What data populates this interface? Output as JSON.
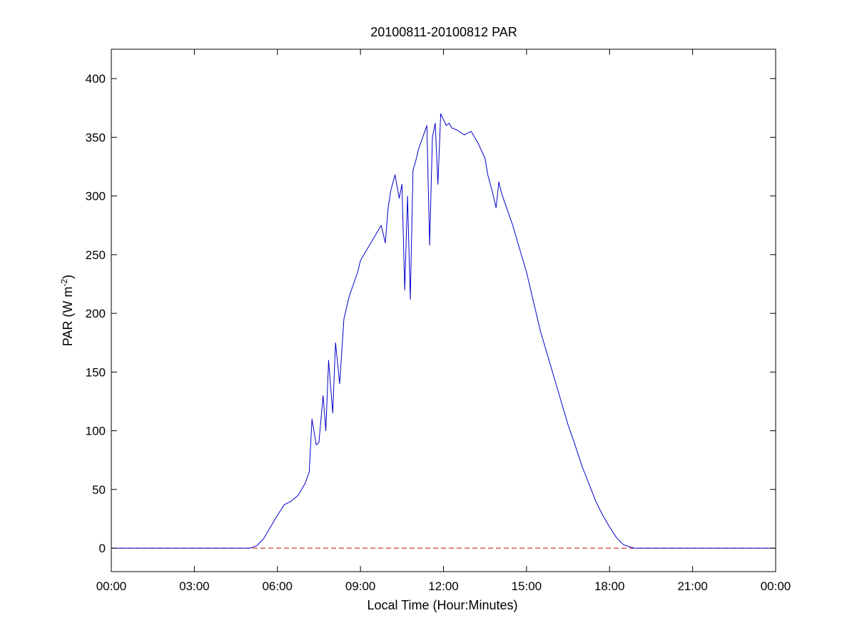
{
  "chart_data": {
    "type": "line",
    "title": "20100811-20100812 PAR",
    "xlabel": "Local Time (Hour:Minutes)",
    "ylabel": {
      "main": "PAR (W m",
      "sup": "-2",
      "close": ")"
    },
    "x_unit": "hours",
    "xlim": [
      0,
      24
    ],
    "ylim": [
      -20,
      425
    ],
    "x_ticks": [
      0,
      3,
      6,
      9,
      12,
      15,
      18,
      21,
      24
    ],
    "x_tick_labels": [
      "00:00",
      "03:00",
      "06:00",
      "09:00",
      "12:00",
      "15:00",
      "18:00",
      "21:00",
      "00:00"
    ],
    "y_ticks": [
      0,
      50,
      100,
      150,
      200,
      250,
      300,
      350,
      400
    ],
    "y_tick_labels": [
      "0",
      "50",
      "100",
      "150",
      "200",
      "250",
      "300",
      "350",
      "400"
    ],
    "grid": false,
    "legend": "none",
    "colors": {
      "series": "#0000cc",
      "reference": "#cc0000",
      "axes": "#000000"
    },
    "reference_line": {
      "y": 0,
      "style": "dashed"
    },
    "series": [
      {
        "x": [
          0,
          1,
          2,
          3,
          4,
          5,
          5.25,
          5.5,
          5.75,
          6.0,
          6.25,
          6.5,
          6.75,
          7.0,
          7.15,
          7.25,
          7.4,
          7.5,
          7.65,
          7.75,
          7.85,
          8.0,
          8.1,
          8.25,
          8.4,
          8.5,
          8.6,
          8.75,
          8.9,
          9.0,
          9.25,
          9.5,
          9.75,
          9.9,
          10.0,
          10.1,
          10.25,
          10.4,
          10.5,
          10.6,
          10.7,
          10.8,
          10.9,
          11.0,
          11.1,
          11.25,
          11.4,
          11.5,
          11.6,
          11.7,
          11.8,
          11.9,
          12.0,
          12.1,
          12.2,
          12.3,
          12.5,
          12.75,
          13.0,
          13.25,
          13.5,
          13.6,
          13.75,
          13.9,
          14.0,
          14.1,
          14.25,
          14.5,
          14.75,
          15.0,
          15.25,
          15.5,
          15.75,
          16.0,
          16.25,
          16.5,
          16.75,
          17.0,
          17.25,
          17.5,
          17.75,
          18.0,
          18.25,
          18.5,
          18.75,
          18.9,
          19.0,
          19.5,
          20,
          21,
          22,
          23,
          24
        ],
        "y": [
          0,
          0,
          0,
          0,
          0,
          0,
          2,
          8,
          18,
          28,
          37,
          40,
          45,
          55,
          65,
          110,
          88,
          90,
          130,
          100,
          160,
          115,
          175,
          140,
          195,
          205,
          215,
          225,
          235,
          245,
          255,
          265,
          275,
          260,
          290,
          305,
          318,
          298,
          310,
          220,
          300,
          212,
          322,
          330,
          340,
          350,
          360,
          258,
          350,
          362,
          310,
          370,
          365,
          360,
          362,
          358,
          356,
          352,
          355,
          345,
          332,
          318,
          305,
          290,
          312,
          302,
          292,
          275,
          255,
          235,
          210,
          185,
          165,
          145,
          125,
          105,
          88,
          70,
          55,
          40,
          28,
          18,
          9,
          3,
          1,
          0,
          0,
          0,
          0,
          0,
          0,
          0,
          0
        ]
      }
    ]
  }
}
